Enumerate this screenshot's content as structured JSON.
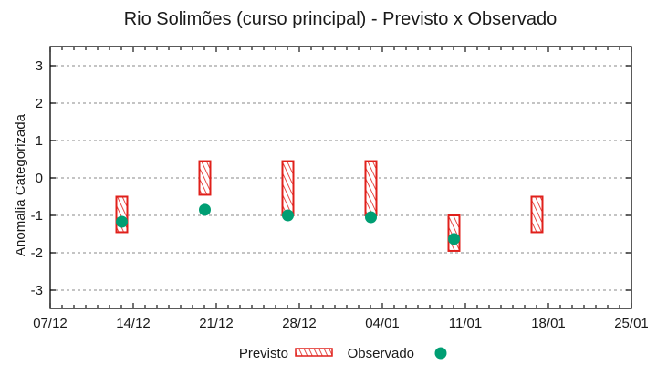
{
  "chart_data": {
    "type": "range-bar-with-scatter",
    "title": "Rio Solimões (curso principal) - Previsto x Observado",
    "xlabel": "",
    "ylabel": "Anomalia Categorizada",
    "ylim": [
      -3.5,
      3.5
    ],
    "yticks": [
      3,
      2,
      1,
      0,
      -1,
      -2,
      -3
    ],
    "ytick_labels": [
      "3",
      "2",
      "1",
      "0",
      "-1",
      "-2",
      "-3"
    ],
    "xticks": [
      "07/12",
      "14/12",
      "21/12",
      "28/12",
      "04/01",
      "11/01",
      "18/01",
      "25/01"
    ],
    "x_minor_ticks_per_major": 7,
    "grid": "horizontal dotted at y ticks",
    "legend_position": "bottom center",
    "legend": [
      {
        "label": "Previsto",
        "marker": "hatched-box",
        "color": "#e0201b"
      },
      {
        "label": "Observado",
        "marker": "circle",
        "color": "#009e73"
      }
    ],
    "series": [
      {
        "name": "Previsto",
        "kind": "range",
        "points": [
          {
            "x": "13/12",
            "low": -1.45,
            "high": -0.5
          },
          {
            "x": "20/12",
            "low": -0.45,
            "high": 0.45
          },
          {
            "x": "27/12",
            "low": -1.0,
            "high": 0.45
          },
          {
            "x": "03/01",
            "low": -1.0,
            "high": 0.45
          },
          {
            "x": "10/01",
            "low": -1.95,
            "high": -1.0
          },
          {
            "x": "17/01",
            "low": -1.45,
            "high": -0.5
          }
        ]
      },
      {
        "name": "Observado",
        "kind": "scatter",
        "points": [
          {
            "x": "13/12",
            "y": -1.17
          },
          {
            "x": "20/12",
            "y": -0.85
          },
          {
            "x": "27/12",
            "y": -1.0
          },
          {
            "x": "03/01",
            "y": -1.05
          },
          {
            "x": "10/01",
            "y": -1.63
          }
        ]
      }
    ],
    "colors": {
      "forecast": "#e0201b",
      "observed": "#009e73",
      "grid": "#a0a0a0",
      "axis": "#000000"
    }
  }
}
